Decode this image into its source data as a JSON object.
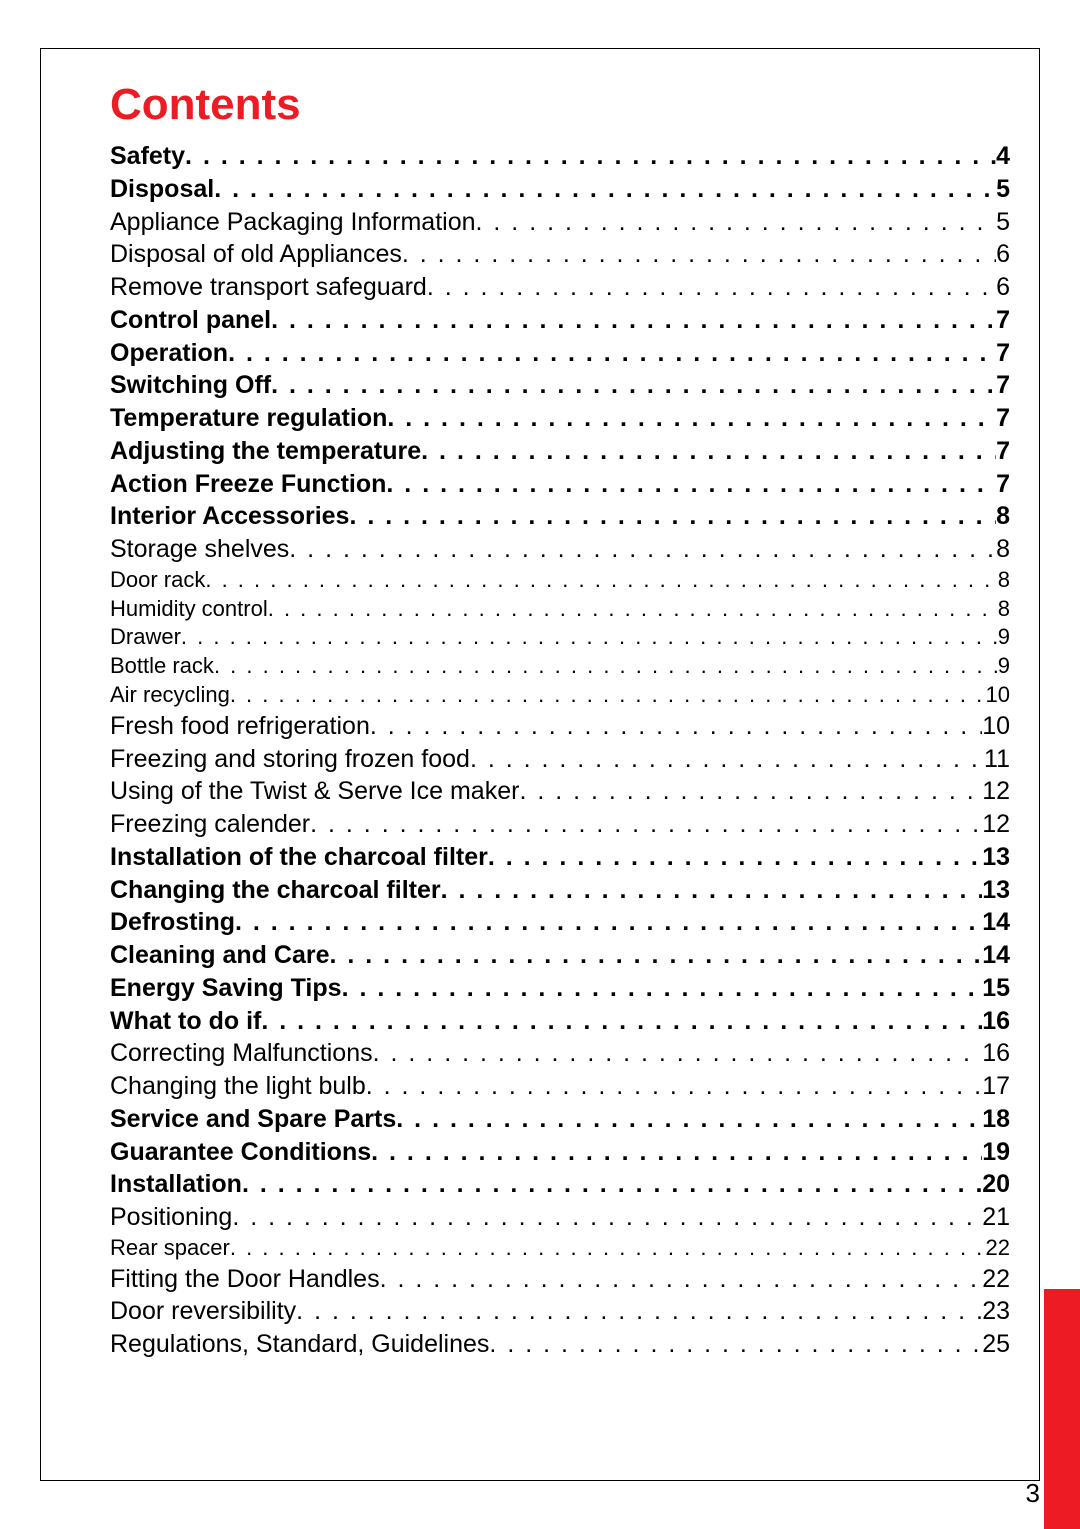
{
  "title": "Contents",
  "pageNumber": "3",
  "colors": {
    "accent": "#ed1c24",
    "text": "#000000",
    "background": "#ffffff"
  },
  "entries": [
    {
      "title": "Safety",
      "page": "4",
      "level": 1
    },
    {
      "title": "Disposal",
      "page": "5",
      "level": 1
    },
    {
      "title": "Appliance Packaging Information",
      "page": "5",
      "level": 2
    },
    {
      "title": "Disposal of old Appliances",
      "page": "6",
      "level": 2
    },
    {
      "title": "Remove transport safeguard",
      "page": "6",
      "level": 2
    },
    {
      "title": "Control panel",
      "page": "7",
      "level": 1
    },
    {
      "title": "Operation",
      "page": "7",
      "level": 1
    },
    {
      "title": "Switching Off",
      "page": "7",
      "level": 1
    },
    {
      "title": "Temperature regulation",
      "page": "7",
      "level": 1
    },
    {
      "title": "Adjusting the temperature",
      "page": "7",
      "level": 1
    },
    {
      "title": "Action Freeze Function",
      "page": "7",
      "level": 1
    },
    {
      "title": "Interior Accessories",
      "page": "8",
      "level": 1
    },
    {
      "title": "Storage shelves",
      "page": "8",
      "level": 2
    },
    {
      "title": "Door rack",
      "page": "8",
      "level": 3
    },
    {
      "title": "Humidity control",
      "page": "8",
      "level": 3
    },
    {
      "title": "Drawer",
      "page": "9",
      "level": 3
    },
    {
      "title": "Bottle rack",
      "page": "9",
      "level": 3
    },
    {
      "title": "Air recycling",
      "page": "10",
      "level": 3
    },
    {
      "title": "Fresh food refrigeration",
      "page": "10",
      "level": 2
    },
    {
      "title": "Freezing and storing frozen food",
      "page": "11",
      "level": 2
    },
    {
      "title": "Using of the Twist & Serve Ice maker",
      "page": "12",
      "level": 2
    },
    {
      "title": "Freezing calender",
      "page": "12",
      "level": 2
    },
    {
      "title": "Installation of the charcoal filter",
      "page": "13",
      "level": 1
    },
    {
      "title": "Changing the charcoal filter",
      "page": "13",
      "level": 1
    },
    {
      "title": "Defrosting",
      "page": "14",
      "level": 1
    },
    {
      "title": "Cleaning and Care",
      "page": "14",
      "level": 1
    },
    {
      "title": "Energy Saving Tips",
      "page": "15",
      "level": 1
    },
    {
      "title": "What to do if",
      "page": "16",
      "level": 1
    },
    {
      "title": "Correcting Malfunctions",
      "page": "16",
      "level": 2
    },
    {
      "title": "Changing the light bulb",
      "page": "17",
      "level": 2
    },
    {
      "title": "Service and Spare Parts",
      "page": "18",
      "level": 1
    },
    {
      "title": "Guarantee Conditions",
      "page": "19",
      "level": 1
    },
    {
      "title": "Installation",
      "page": "20",
      "level": 1
    },
    {
      "title": "Positioning",
      "page": "21",
      "level": 2
    },
    {
      "title": "Rear spacer",
      "page": "22",
      "level": 3
    },
    {
      "title": "Fitting the Door Handles",
      "page": "22",
      "level": 2
    },
    {
      "title": "Door reversibility",
      "page": "23",
      "level": 2
    },
    {
      "title": "Regulations, Standard, Guidelines",
      "page": "25",
      "level": 2
    }
  ]
}
